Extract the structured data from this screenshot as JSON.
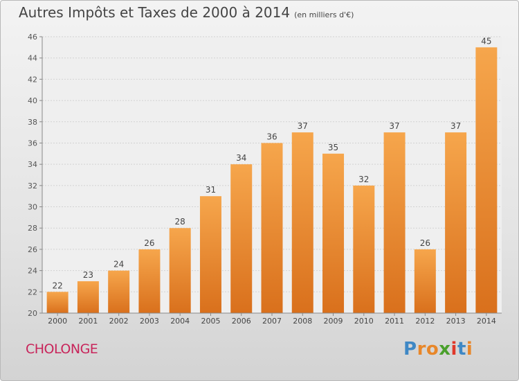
{
  "header": {
    "title": "Autres Impôts et Taxes de 2000 à 2014",
    "unit": "(en milliers d'€)"
  },
  "footer": {
    "commune": "CHOLONGE",
    "logo_letters": [
      "P",
      "r",
      "o",
      "x",
      "i",
      "t",
      "i"
    ]
  },
  "colors": {
    "bar_light": "#f6a64c",
    "bar_dark": "#d9701c",
    "commune_text": "#c8245a",
    "logo": [
      "#3f88c5",
      "#e8872a",
      "#e8872a",
      "#4aa02c",
      "#e0382a",
      "#3f88c5",
      "#e8872a"
    ]
  },
  "chart_data": {
    "type": "bar",
    "title": "Autres Impôts et Taxes de 2000 à 2014",
    "xlabel": "",
    "ylabel": "",
    "categories": [
      "2000",
      "2001",
      "2002",
      "2003",
      "2004",
      "2005",
      "2006",
      "2007",
      "2008",
      "2009",
      "2010",
      "2011",
      "2012",
      "2013",
      "2014"
    ],
    "values": [
      22,
      23,
      24,
      26,
      28,
      31,
      34,
      36,
      37,
      35,
      32,
      37,
      26,
      37,
      45
    ],
    "ylim": [
      20,
      46
    ],
    "yticks": [
      20,
      22,
      24,
      26,
      28,
      30,
      32,
      34,
      36,
      38,
      40,
      42,
      44,
      46
    ],
    "grid": true
  }
}
